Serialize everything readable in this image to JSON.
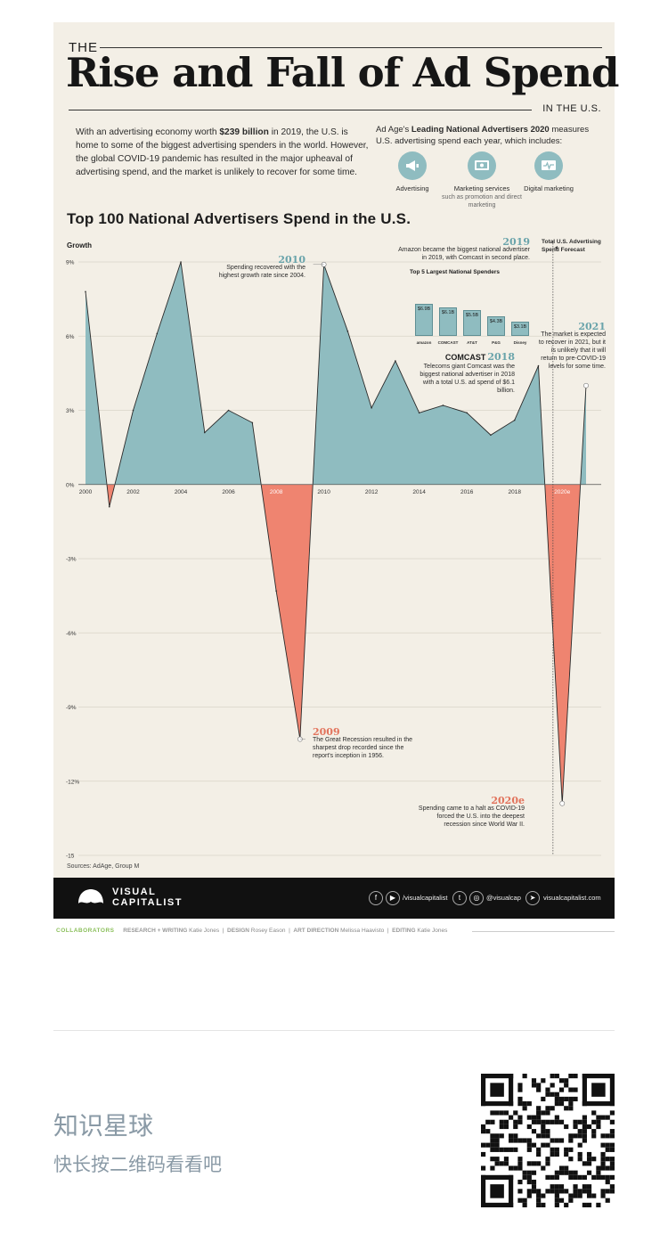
{
  "header": {
    "the": "THE",
    "title": "Rise and Fall of Ad Spend",
    "region": "IN THE U.S."
  },
  "intro": {
    "p1": "With an advertising economy worth ",
    "bold": "$239 billion",
    "p2": " in 2019, the U.S. is home to some of the biggest advertising spenders in the world. However, the global COVID-19 pandemic has resulted in the major upheaval of advertising spend, and the market is unlikely to recover for some time."
  },
  "measures": {
    "p1": "Ad Age's ",
    "bold": "Leading National Advertisers 2020",
    "p2": " measures U.S. advertising spend each year, which includes:"
  },
  "categories": [
    {
      "label": "Advertising",
      "sub": "",
      "icon": "megaphone-icon"
    },
    {
      "label": "Marketing services",
      "sub": "such as promotion and direct marketing",
      "icon": "monitor-icon"
    },
    {
      "label": "Digital marketing",
      "sub": "",
      "icon": "pulse-screen-icon"
    }
  ],
  "chart_data": {
    "type": "area",
    "title": "Top 100 National Advertisers Spend in the U.S.",
    "ylabel": "Growth",
    "ylim": [
      -15,
      9
    ],
    "yticks": [
      9,
      6,
      3,
      0,
      -3,
      -6,
      -9,
      -12,
      -15
    ],
    "ytick_labels": [
      "9%",
      "6%",
      "3%",
      "0%",
      "-3%",
      "-6%",
      "-9%",
      "-12%",
      "-15"
    ],
    "xtick_labels": [
      "2000",
      "2002",
      "2004",
      "2006",
      "2008",
      "2010",
      "2012",
      "2014",
      "2016",
      "2018",
      "2020e"
    ],
    "xticks": [
      2000,
      2002,
      2004,
      2006,
      2008,
      2010,
      2012,
      2014,
      2016,
      2018,
      2020
    ],
    "x": [
      2000,
      2001,
      2002,
      2003,
      2004,
      2005,
      2006,
      2007,
      2008,
      2009,
      2010,
      2011,
      2012,
      2013,
      2014,
      2015,
      2016,
      2017,
      2018,
      2019,
      2020,
      2021
    ],
    "values": [
      7.8,
      -0.9,
      3.0,
      6.1,
      9.0,
      2.1,
      3.0,
      2.5,
      -4.3,
      -10.3,
      8.9,
      6.2,
      3.1,
      5.0,
      2.9,
      3.2,
      2.9,
      2.0,
      2.6,
      4.8,
      -12.9,
      4.0
    ],
    "colors": {
      "positive": "#8fbcc0",
      "negative": "#ef8470",
      "line": "#2a2a2a"
    },
    "forecast_label": "Total U.S. Advertising Spend Forecast",
    "grid": true
  },
  "annotations": {
    "y2010": {
      "year": "2010",
      "text": "Spending recovered with the highest growth rate since 2004."
    },
    "y2019": {
      "year": "2019",
      "text": "Amazon became the biggest national advertiser in 2019, with Comcast in second place."
    },
    "y2018": {
      "brand": "COMCAST",
      "year": "2018",
      "text": "Telecoms giant Comcast was the biggest national advertiser in 2018 with a total U.S. ad spend of $6.1 billion."
    },
    "y2021": {
      "year": "2021",
      "text": "The market is expected to recover in 2021, but it is unlikely that it will return to pre-COVID-19 levels for some time."
    },
    "y2009": {
      "year": "2009",
      "text": "The Great Recession resulted in the sharpest drop recorded since the report's inception in 1956."
    },
    "y2020": {
      "year": "2020e",
      "text": "Spending came to a halt as COVID-19 forced the U.S. into the deepest recession since World War II."
    }
  },
  "top5": {
    "title": "Top 5 Largest National Spenders",
    "items": [
      {
        "value": 6.9,
        "label": "$6.9B",
        "brand": "amazon"
      },
      {
        "value": 6.1,
        "label": "$6.1B",
        "brand": "COMCAST"
      },
      {
        "value": 5.5,
        "label": "$5.5B",
        "brand": "AT&T"
      },
      {
        "value": 4.3,
        "label": "$4.3B",
        "brand": "P&G"
      },
      {
        "value": 3.1,
        "label": "$3.1B",
        "brand": "Disney"
      }
    ]
  },
  "sources": "Sources: AdAge, Group M",
  "footer": {
    "brand_line1": "VISUAL",
    "brand_line2": "CAPITALIST",
    "handle1": "/visualcapitalist",
    "handle2": "@visualcap",
    "site": "visualcapitalist.com"
  },
  "collaborators": {
    "label": "COLLABORATORS",
    "items": [
      {
        "role": "RESEARCH + WRITING",
        "name": "Katie Jones"
      },
      {
        "role": "DESIGN",
        "name": "Rosey Eason"
      },
      {
        "role": "ART DIRECTION",
        "name": "Melissa Haavisto"
      },
      {
        "role": "EDITING",
        "name": "Katie Jones"
      }
    ]
  },
  "promo": {
    "title": "知识星球",
    "subtitle": "快长按二维码看看吧"
  }
}
